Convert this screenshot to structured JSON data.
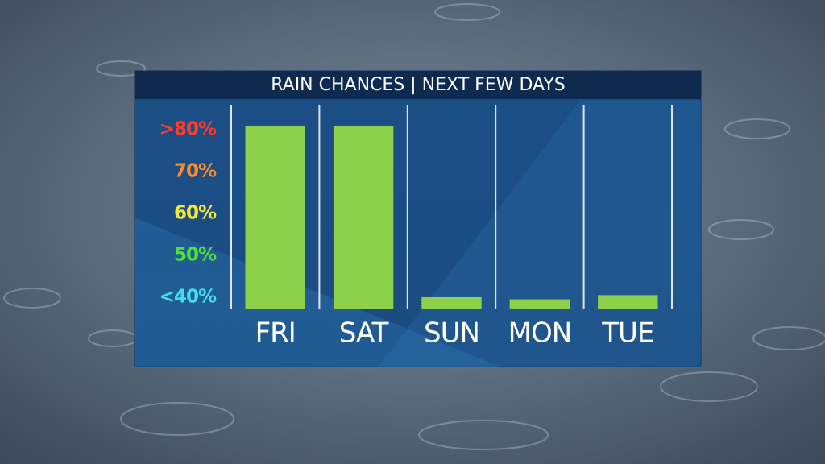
{
  "chart_data": {
    "type": "bar",
    "title": "RAIN CHANCES | NEXT FEW DAYS",
    "categories": [
      "FRI",
      "SAT",
      "SUN",
      "MON",
      "TUE"
    ],
    "values": [
      81,
      81,
      40,
      39.5,
      40.5
    ],
    "color": "#8dd14a",
    "ylim": [
      37.3,
      86
    ],
    "yticks": [
      {
        "value": 80,
        "label": ">80%"
      },
      {
        "value": 70,
        "label": "70%"
      },
      {
        "value": 60,
        "label": "60%"
      },
      {
        "value": 50,
        "label": "50%"
      },
      {
        "value": 40,
        "label": "<40%"
      }
    ],
    "ytick_colors": [
      "#ff3b2f",
      "#ff8a2a",
      "#f4e93a",
      "#4fe03a",
      "#3fe0f0"
    ]
  }
}
